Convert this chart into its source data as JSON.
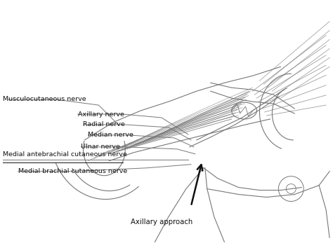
{
  "figsize": [
    4.74,
    3.47
  ],
  "dpi": 100,
  "bg_color": "#ffffff",
  "line_color": "#777777",
  "dark_line": "#333333",
  "text_color": "#111111",
  "fontsize": 6.8,
  "labels": {
    "musculocutaneous": "Musculocutaneous nerve",
    "axillary": "Axillary nerve",
    "radial": "Radial nerve",
    "median": "Median nerve",
    "ulnar": "Ulnar nerve",
    "medial_antebrachial": "Medial antebrachial cutaneous nerve",
    "medial_brachial": "Medial brachial cutaneous nerve",
    "axillary_approach": "Axillary approach"
  }
}
